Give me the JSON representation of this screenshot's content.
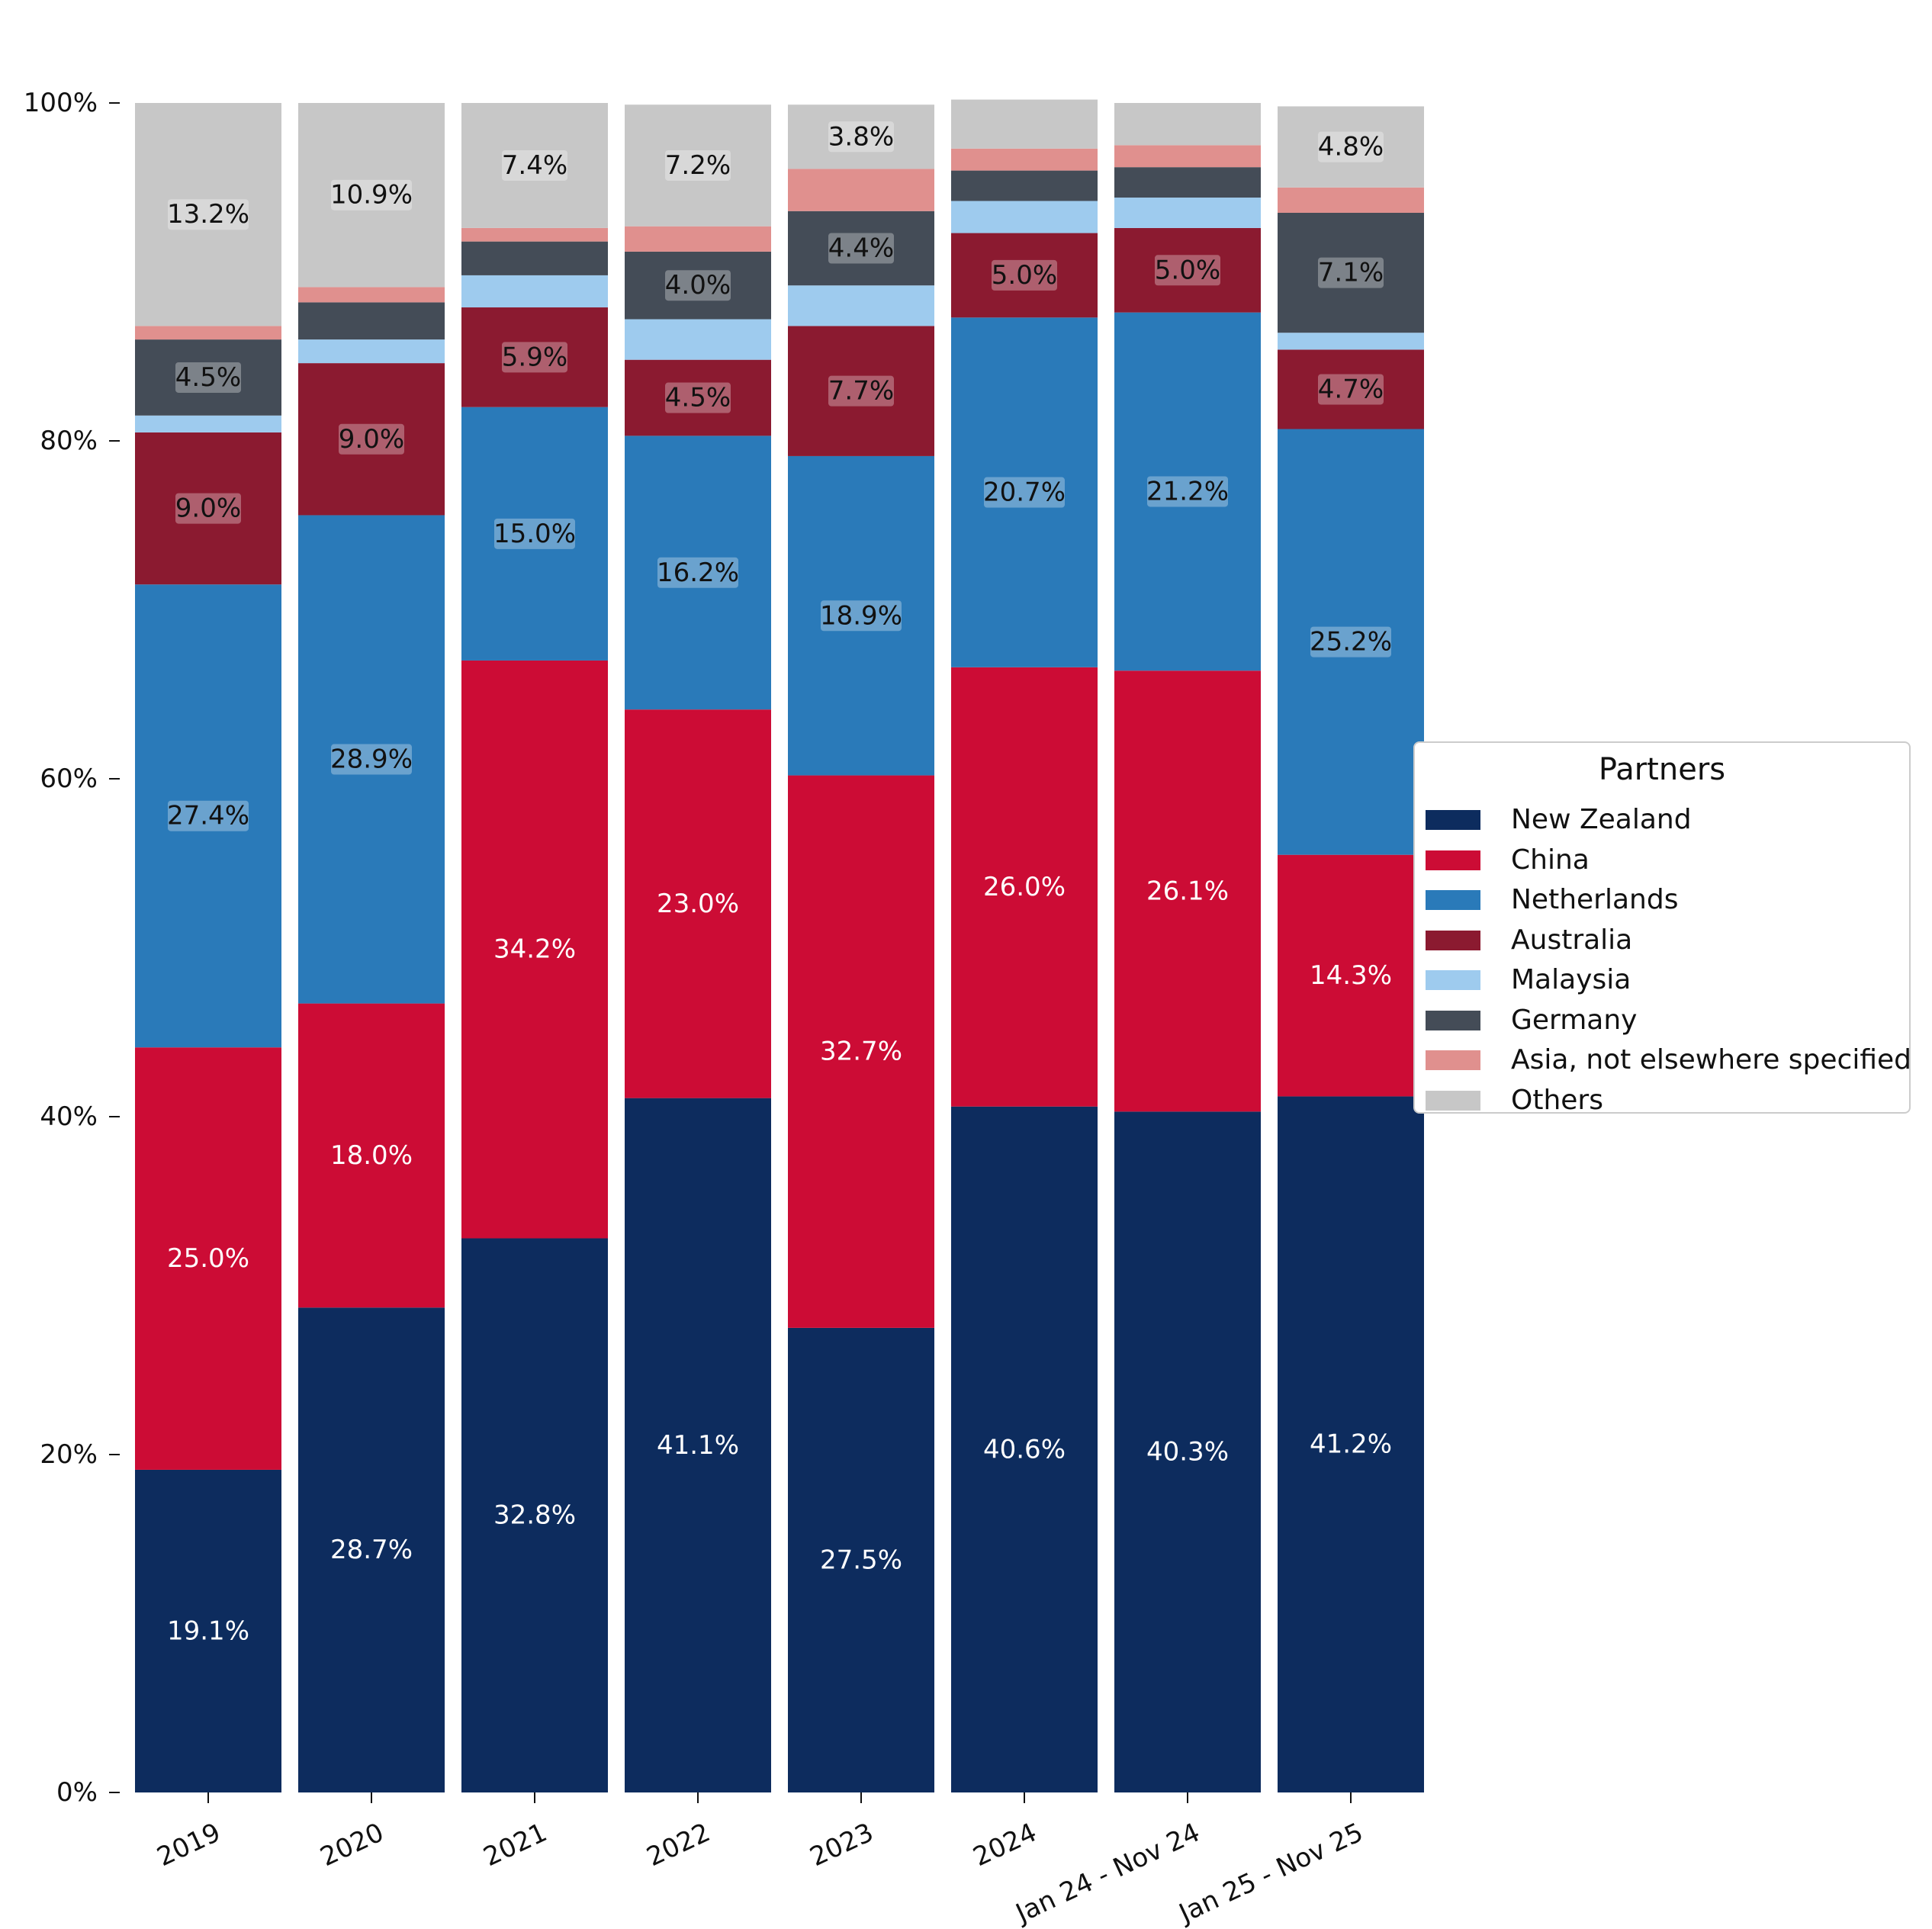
{
  "chart_data": {
    "type": "bar",
    "stacked": true,
    "categories": [
      "2019",
      "2020",
      "2021",
      "2022",
      "2023",
      "2024",
      "Jan 24 - Nov 24",
      "Jan 25 - Nov 25"
    ],
    "y_ticks": [
      "0%",
      "20%",
      "40%",
      "60%",
      "80%",
      "100%"
    ],
    "ylim": [
      0,
      100
    ],
    "legend": {
      "title": "Partners",
      "position": "right"
    },
    "series": [
      {
        "name": "New Zealand",
        "color": "#0d2c5e",
        "label_color": "#ffffff",
        "values": [
          19.1,
          28.7,
          32.8,
          41.1,
          27.5,
          40.6,
          40.3,
          41.2
        ]
      },
      {
        "name": "China",
        "color": "#cc0c35",
        "label_color": "#ffffff",
        "values": [
          25.0,
          18.0,
          34.2,
          23.0,
          32.7,
          26.0,
          26.1,
          14.3
        ]
      },
      {
        "name": "Netherlands",
        "color": "#2a7ab9",
        "label_color": "#111111",
        "values": [
          27.4,
          28.9,
          15.0,
          16.2,
          18.9,
          20.7,
          21.2,
          25.2
        ]
      },
      {
        "name": "Australia",
        "color": "#8b1a30",
        "label_color": "#111111",
        "values": [
          9.0,
          9.0,
          5.9,
          4.5,
          7.7,
          5.0,
          5.0,
          4.7
        ]
      },
      {
        "name": "Malaysia",
        "color": "#9ecbee",
        "label_color": "#111111",
        "values": [
          1.0,
          1.4,
          1.9,
          2.4,
          2.4,
          1.9,
          1.8,
          1.0
        ]
      },
      {
        "name": "Germany",
        "color": "#444c57",
        "label_color": "#111111",
        "values": [
          4.5,
          2.2,
          2.0,
          4.0,
          4.4,
          1.8,
          1.8,
          7.1
        ]
      },
      {
        "name": "Asia, not elsewhere specified",
        "color": "#e0908e",
        "label_color": "#111111",
        "values": [
          0.8,
          0.9,
          0.8,
          1.5,
          2.5,
          1.3,
          1.3,
          1.5
        ]
      },
      {
        "name": "Others",
        "color": "#c7c7c7",
        "label_color": "#111111",
        "values": [
          13.2,
          10.9,
          7.4,
          7.2,
          3.8,
          2.9,
          2.5,
          4.8
        ]
      }
    ],
    "data_labels": [
      [
        "19.1%",
        "28.7%",
        "32.8%",
        "41.1%",
        "27.5%",
        "40.6%",
        "40.3%",
        "41.2%"
      ],
      [
        "25.0%",
        "18.0%",
        "34.2%",
        "23.0%",
        "32.7%",
        "26.0%",
        "26.1%",
        "14.3%"
      ],
      [
        "27.4%",
        "28.9%",
        "15.0%",
        "16.2%",
        "18.9%",
        "20.7%",
        "21.2%",
        "25.2%"
      ],
      [
        "9.0%",
        "9.0%",
        "5.9%",
        "4.5%",
        "7.7%",
        "5.0%",
        "5.0%",
        "4.7%"
      ],
      [
        "",
        "",
        "",
        "",
        "",
        "",
        "",
        ""
      ],
      [
        "4.5%",
        "",
        "",
        "4.0%",
        "4.4%",
        "",
        "",
        "7.1%"
      ],
      [
        "",
        "",
        "",
        "",
        "",
        "",
        "",
        ""
      ],
      [
        "13.2%",
        "10.9%",
        "7.4%",
        "7.2%",
        "3.8%",
        "",
        "",
        "4.8%"
      ]
    ]
  }
}
